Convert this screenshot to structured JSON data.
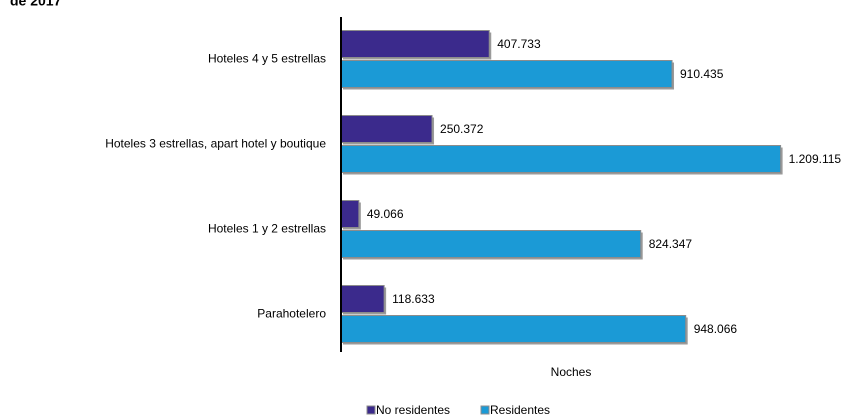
{
  "chart_data": {
    "type": "bar",
    "orientation": "horizontal",
    "title": "de 2017",
    "x_label": "Noches",
    "categories": [
      "Hoteles 4 y 5 estrellas",
      "Hoteles 3 estrellas, apart hotel y boutique",
      "Hoteles 1 y 2 estrellas",
      "Parahotelero"
    ],
    "series": [
      {
        "name": "No residentes",
        "color": "#3b2a8c",
        "values": [
          407733,
          250372,
          49066,
          118633
        ],
        "value_labels": [
          "407.733",
          "250.372",
          "49.066",
          "118.633"
        ]
      },
      {
        "name": "Residentes",
        "color": "#1b9ad6",
        "values": [
          910435,
          1209115,
          824347,
          948066
        ],
        "value_labels": [
          "910.435",
          "1.209.115",
          "824.347",
          "948.066"
        ]
      }
    ],
    "xlim": [
      0,
      1400000
    ],
    "legend": "bottom"
  }
}
